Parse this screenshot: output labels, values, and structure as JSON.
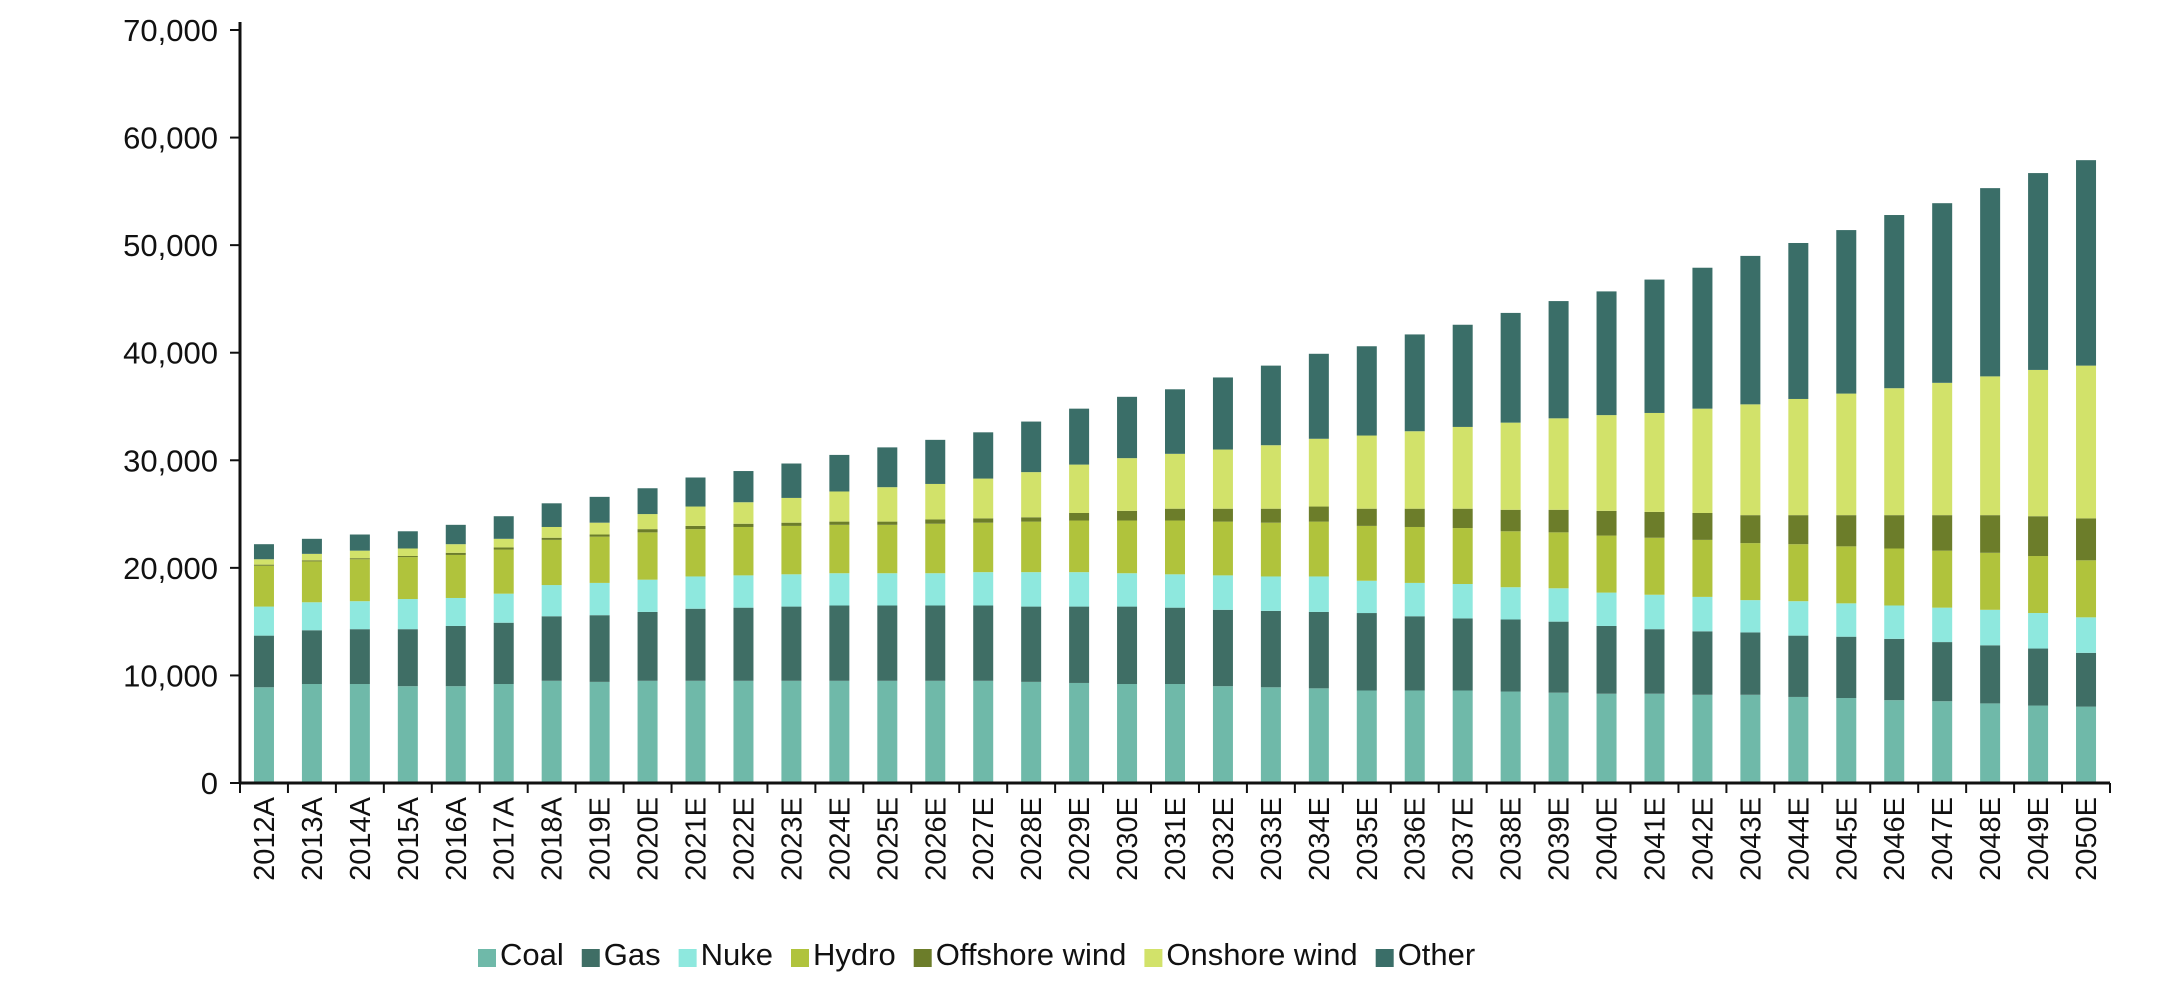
{
  "chart_data": {
    "type": "bar",
    "stacked": true,
    "title": "",
    "xlabel": "",
    "ylabel": "",
    "ylim": [
      0,
      70000
    ],
    "yticks": [
      0,
      10000,
      20000,
      30000,
      40000,
      50000,
      60000,
      70000
    ],
    "ytick_labels": [
      "0",
      "10,000",
      "20,000",
      "30,000",
      "40,000",
      "50,000",
      "60,000",
      "70,000"
    ],
    "grid": false,
    "legend_position": "bottom",
    "categories": [
      "2012A",
      "2013A",
      "2014A",
      "2015A",
      "2016A",
      "2017A",
      "2018A",
      "2019E",
      "2020E",
      "2021E",
      "2022E",
      "2023E",
      "2024E",
      "2025E",
      "2026E",
      "2027E",
      "2028E",
      "2029E",
      "2030E",
      "2031E",
      "2032E",
      "2033E",
      "2034E",
      "2035E",
      "2036E",
      "2037E",
      "2038E",
      "2039E",
      "2040E",
      "2041E",
      "2042E",
      "2043E",
      "2044E",
      "2045E",
      "2046E",
      "2047E",
      "2048E",
      "2049E",
      "2050E"
    ],
    "series": [
      {
        "name": "Coal",
        "color": "#6fb9a9",
        "values": [
          8900,
          9200,
          9200,
          9000,
          9000,
          9200,
          9500,
          9400,
          9500,
          9500,
          9500,
          9500,
          9500,
          9500,
          9500,
          9500,
          9400,
          9300,
          9200,
          9200,
          9000,
          8900,
          8800,
          8600,
          8600,
          8600,
          8500,
          8400,
          8300,
          8300,
          8200,
          8200,
          8000,
          7900,
          7700,
          7600,
          7400,
          7200,
          7100
        ]
      },
      {
        "name": "Gas",
        "color": "#3f6e65",
        "values": [
          4800,
          5000,
          5100,
          5300,
          5600,
          5700,
          6000,
          6200,
          6400,
          6700,
          6800,
          6900,
          7000,
          7000,
          7000,
          7000,
          7000,
          7100,
          7200,
          7100,
          7100,
          7100,
          7100,
          7200,
          6900,
          6700,
          6700,
          6600,
          6300,
          6000,
          5900,
          5800,
          5700,
          5700,
          5700,
          5500,
          5400,
          5300,
          5000
        ]
      },
      {
        "name": "Nuke",
        "color": "#8ee8de",
        "values": [
          2700,
          2600,
          2600,
          2800,
          2600,
          2700,
          2900,
          3000,
          3000,
          3000,
          3000,
          3000,
          3000,
          3000,
          3000,
          3100,
          3200,
          3200,
          3100,
          3100,
          3200,
          3200,
          3300,
          3000,
          3100,
          3200,
          3000,
          3100,
          3100,
          3200,
          3200,
          3000,
          3200,
          3100,
          3100,
          3200,
          3300,
          3300,
          3300
        ]
      },
      {
        "name": "Hydro",
        "color": "#b0c33c",
        "values": [
          3800,
          3800,
          3900,
          3900,
          4000,
          4100,
          4200,
          4300,
          4400,
          4400,
          4500,
          4500,
          4500,
          4500,
          4600,
          4600,
          4700,
          4800,
          4900,
          5000,
          5000,
          5000,
          5100,
          5100,
          5200,
          5200,
          5200,
          5200,
          5300,
          5300,
          5300,
          5300,
          5300,
          5300,
          5300,
          5300,
          5300,
          5300,
          5300
        ]
      },
      {
        "name": "Offshore wind",
        "color": "#6c7d2a",
        "values": [
          100,
          100,
          100,
          100,
          200,
          200,
          200,
          200,
          300,
          300,
          300,
          300,
          300,
          300,
          400,
          400,
          400,
          700,
          900,
          1100,
          1200,
          1300,
          1400,
          1600,
          1700,
          1800,
          2000,
          2100,
          2300,
          2400,
          2500,
          2600,
          2700,
          2900,
          3100,
          3300,
          3500,
          3700,
          3900
        ]
      },
      {
        "name": "Onshore wind",
        "color": "#d2e26a",
        "values": [
          500,
          600,
          700,
          700,
          800,
          800,
          1000,
          1100,
          1400,
          1800,
          2000,
          2300,
          2800,
          3200,
          3300,
          3700,
          4200,
          4500,
          4900,
          5100,
          5500,
          5900,
          6300,
          6800,
          7200,
          7600,
          8100,
          8500,
          8900,
          9200,
          9700,
          10300,
          10800,
          11300,
          11800,
          12300,
          12900,
          13600,
          14200
        ]
      },
      {
        "name": "Other",
        "color": "#3a6e68",
        "values": [
          1400,
          1400,
          1500,
          1600,
          1800,
          2100,
          2200,
          2400,
          2400,
          2700,
          2900,
          3200,
          3400,
          3700,
          4100,
          4300,
          4700,
          5200,
          5700,
          6000,
          6700,
          7400,
          7900,
          8300,
          9000,
          9500,
          10200,
          10900,
          11500,
          12400,
          13100,
          13800,
          14500,
          15200,
          16100,
          16700,
          17500,
          18300,
          19100
        ]
      }
    ]
  }
}
